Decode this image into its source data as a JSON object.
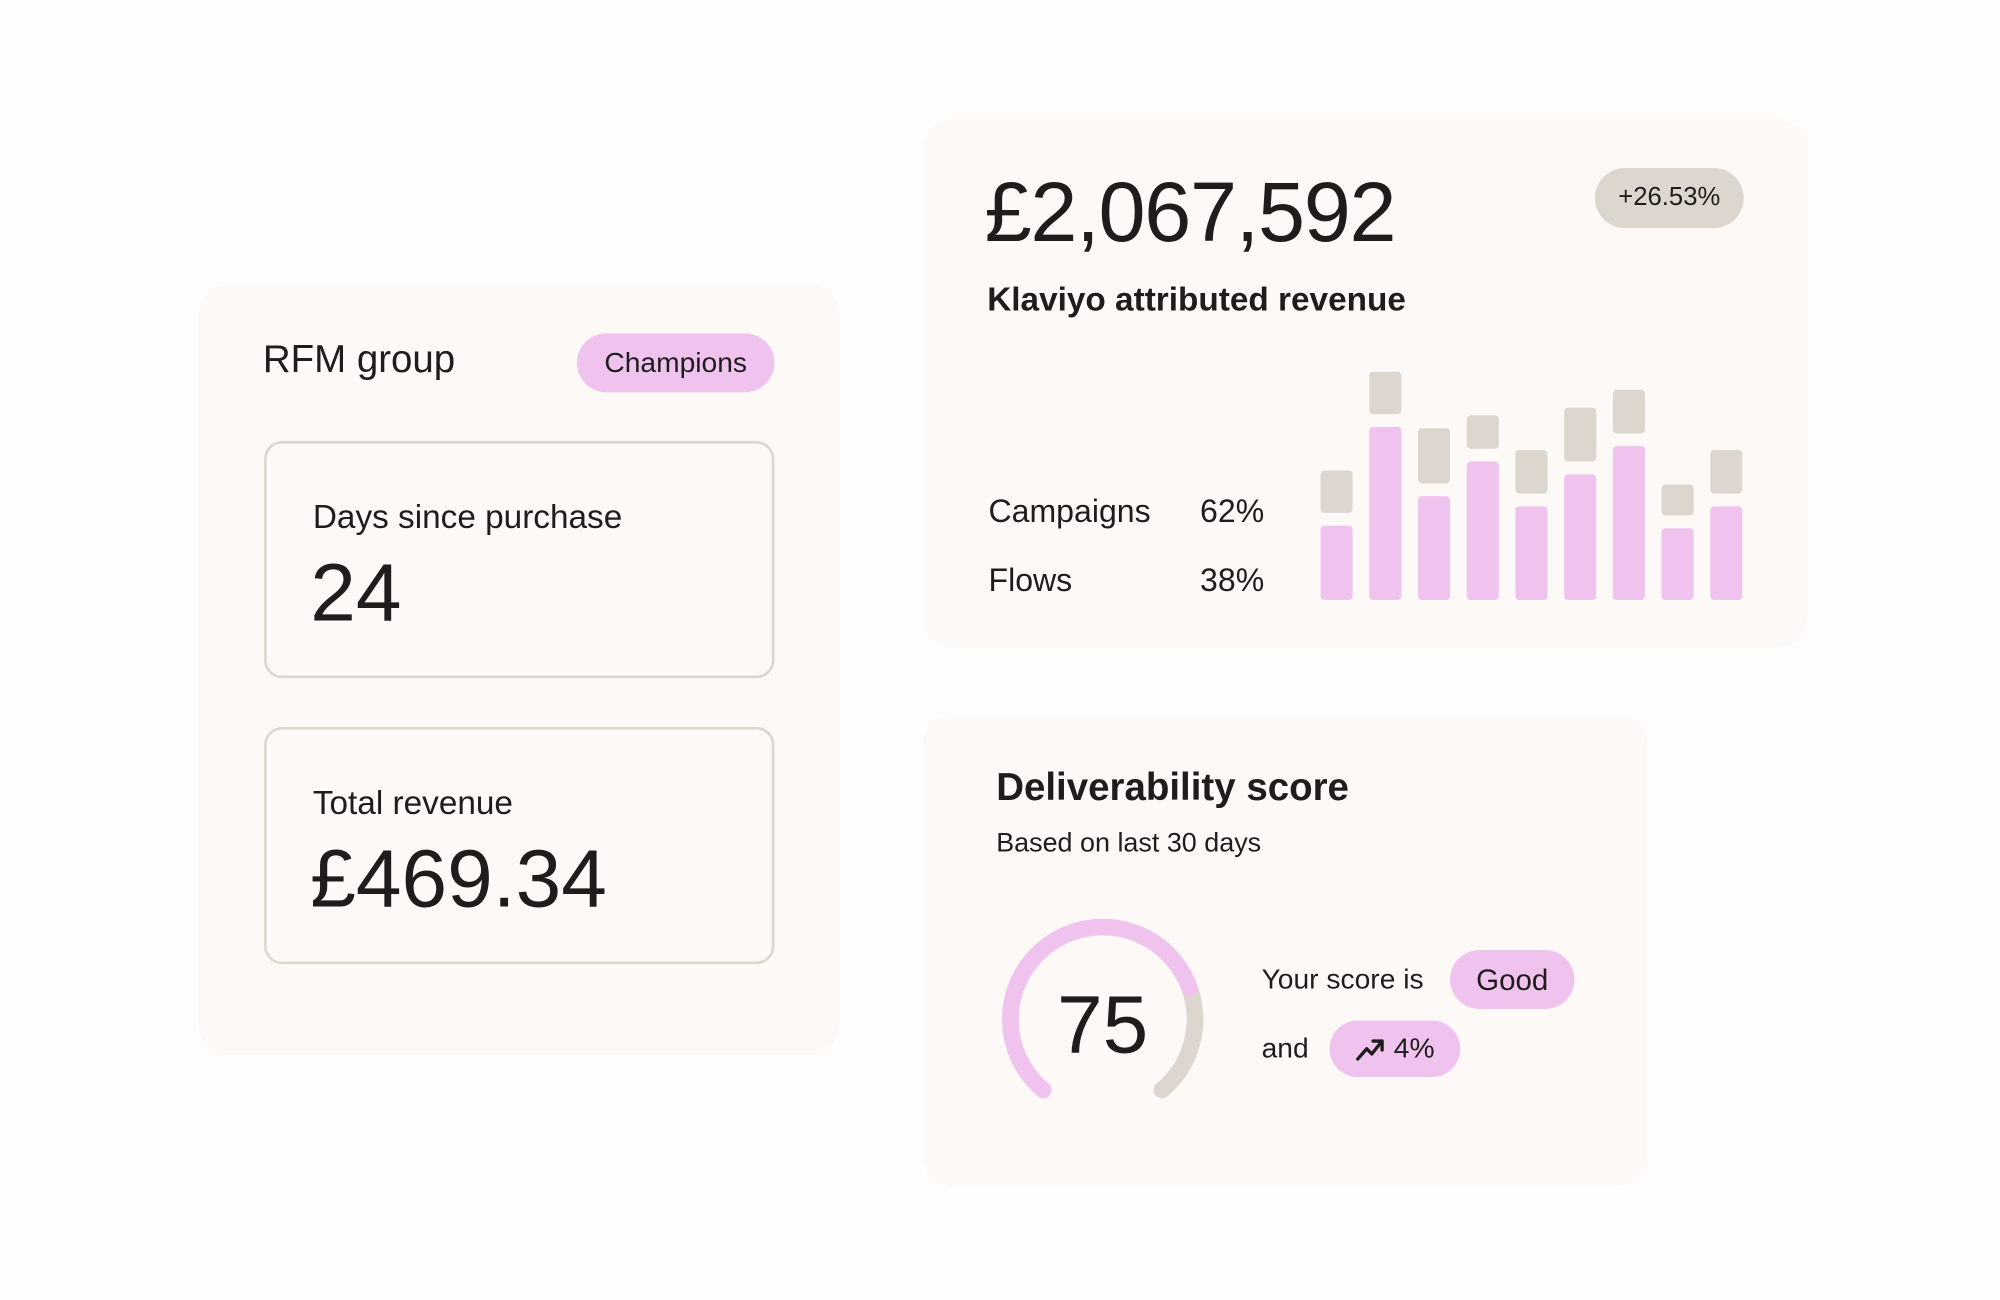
{
  "rfm": {
    "title": "RFM group",
    "badge": "Champions",
    "cards": [
      {
        "label": "Days since purchase",
        "value": "24"
      },
      {
        "label": "Total revenue",
        "value": "£469.34"
      }
    ]
  },
  "revenue": {
    "amount": "£2,067,592",
    "change": "+26.53%",
    "label": "Klaviyo attributed revenue",
    "breakdown": [
      {
        "name": "Campaigns",
        "share": "62%"
      },
      {
        "name": "Flows",
        "share": "38%"
      }
    ]
  },
  "chart_data": {
    "type": "bar",
    "series": [
      {
        "color": "#efc3ee",
        "values": [
          58,
          135,
          81,
          108,
          73,
          98,
          120,
          56,
          73
        ]
      },
      {
        "color": "#ddd6cf",
        "values": [
          33,
          33,
          43,
          26,
          34,
          42,
          34,
          24,
          34
        ]
      }
    ]
  },
  "deliverability": {
    "title": "Deliverability score",
    "subtitle": "Based on last 30 days",
    "score": "75",
    "sentence": "Your score is",
    "rating": "Good",
    "connector": "and",
    "trend": "4%"
  }
}
